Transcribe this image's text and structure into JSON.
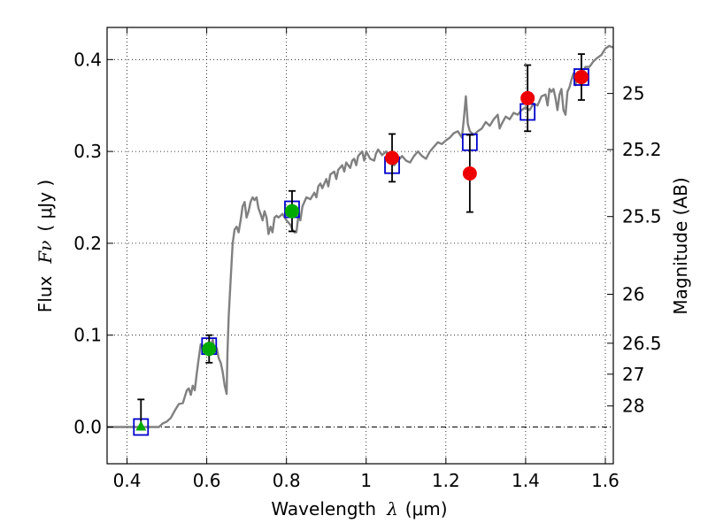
{
  "chart_data": {
    "type": "scatter",
    "x_axis": {
      "label_prefix": "Wavelength",
      "label_symbol": "λ",
      "label_unit": "(μm)",
      "range": [
        0.35,
        1.62
      ],
      "ticks": [
        0.4,
        0.6,
        0.8,
        1.0,
        1.2,
        1.4,
        1.6
      ],
      "tick_labels": [
        "0.4",
        "0.6",
        "0.8",
        "1",
        "1.2",
        "1.4",
        "1.6"
      ]
    },
    "y_axis": {
      "label_prefix": "Flux",
      "label_symbol": "Fν",
      "label_unit": "( μJy )",
      "range": [
        -0.04,
        0.435
      ],
      "ticks": [
        0.0,
        0.1,
        0.2,
        0.3,
        0.4
      ],
      "tick_labels": [
        "0.0",
        "0.1",
        "0.2",
        "0.3",
        "0.4"
      ]
    },
    "y2_axis": {
      "label": "Magnitude (AB)",
      "ticks": [
        {
          "flux": 0.3631,
          "label": "25"
        },
        {
          "flux": 0.302,
          "label": "25.2"
        },
        {
          "flux": 0.2291,
          "label": "25.5"
        },
        {
          "flux": 0.1445,
          "label": "26"
        },
        {
          "flux": 0.0912,
          "label": "26.5"
        },
        {
          "flux": 0.0575,
          "label": "27"
        },
        {
          "flux": 0.0229,
          "label": "28"
        }
      ]
    },
    "grid": true,
    "series": [
      {
        "name": "SED model",
        "kind": "line",
        "color": "#808080",
        "points": [
          [
            0.35,
            0.0
          ],
          [
            0.48,
            0.0
          ],
          [
            0.49,
            0.004
          ],
          [
            0.5,
            0.006
          ],
          [
            0.51,
            0.01
          ],
          [
            0.52,
            0.018
          ],
          [
            0.53,
            0.025
          ],
          [
            0.54,
            0.026
          ],
          [
            0.55,
            0.04
          ],
          [
            0.555,
            0.042
          ],
          [
            0.56,
            0.035
          ],
          [
            0.565,
            0.045
          ],
          [
            0.57,
            0.04
          ],
          [
            0.575,
            0.058
          ],
          [
            0.58,
            0.075
          ],
          [
            0.585,
            0.09
          ],
          [
            0.59,
            0.088
          ],
          [
            0.595,
            0.08
          ],
          [
            0.6,
            0.085
          ],
          [
            0.605,
            0.078
          ],
          [
            0.61,
            0.088
          ],
          [
            0.615,
            0.095
          ],
          [
            0.62,
            0.082
          ],
          [
            0.625,
            0.086
          ],
          [
            0.63,
            0.075
          ],
          [
            0.635,
            0.07
          ],
          [
            0.64,
            0.06
          ],
          [
            0.645,
            0.045
          ],
          [
            0.65,
            0.036
          ],
          [
            0.652,
            0.08
          ],
          [
            0.655,
            0.12
          ],
          [
            0.66,
            0.16
          ],
          [
            0.665,
            0.2
          ],
          [
            0.67,
            0.215
          ],
          [
            0.675,
            0.218
          ],
          [
            0.68,
            0.212
          ],
          [
            0.685,
            0.225
          ],
          [
            0.69,
            0.24
          ],
          [
            0.695,
            0.245
          ],
          [
            0.7,
            0.228
          ],
          [
            0.705,
            0.235
          ],
          [
            0.71,
            0.245
          ],
          [
            0.715,
            0.25
          ],
          [
            0.72,
            0.247
          ],
          [
            0.725,
            0.25
          ],
          [
            0.73,
            0.238
          ],
          [
            0.735,
            0.232
          ],
          [
            0.74,
            0.225
          ],
          [
            0.745,
            0.235
          ],
          [
            0.75,
            0.228
          ],
          [
            0.755,
            0.21
          ],
          [
            0.76,
            0.218
          ],
          [
            0.765,
            0.212
          ],
          [
            0.77,
            0.228
          ],
          [
            0.775,
            0.23
          ],
          [
            0.78,
            0.228
          ],
          [
            0.79,
            0.232
          ],
          [
            0.8,
            0.225
          ],
          [
            0.81,
            0.22
          ],
          [
            0.815,
            0.215
          ],
          [
            0.82,
            0.212
          ],
          [
            0.825,
            0.212
          ],
          [
            0.83,
            0.23
          ],
          [
            0.835,
            0.225
          ],
          [
            0.84,
            0.24
          ],
          [
            0.85,
            0.25
          ],
          [
            0.86,
            0.248
          ],
          [
            0.87,
            0.255
          ],
          [
            0.875,
            0.25
          ],
          [
            0.88,
            0.262
          ],
          [
            0.885,
            0.265
          ],
          [
            0.89,
            0.26
          ],
          [
            0.9,
            0.27
          ],
          [
            0.905,
            0.262
          ],
          [
            0.91,
            0.275
          ],
          [
            0.92,
            0.278
          ],
          [
            0.925,
            0.27
          ],
          [
            0.93,
            0.28
          ],
          [
            0.94,
            0.285
          ],
          [
            0.945,
            0.278
          ],
          [
            0.95,
            0.288
          ],
          [
            0.96,
            0.282
          ],
          [
            0.965,
            0.29
          ],
          [
            0.97,
            0.292
          ],
          [
            0.975,
            0.285
          ],
          [
            0.98,
            0.295
          ],
          [
            0.99,
            0.3
          ],
          [
            0.995,
            0.29
          ],
          [
            1.0,
            0.3
          ],
          [
            1.01,
            0.292
          ],
          [
            1.02,
            0.29
          ],
          [
            1.025,
            0.298
          ],
          [
            1.03,
            0.302
          ],
          [
            1.04,
            0.296
          ],
          [
            1.05,
            0.3
          ],
          [
            1.06,
            0.288
          ],
          [
            1.07,
            0.285
          ],
          [
            1.08,
            0.29
          ],
          [
            1.09,
            0.295
          ],
          [
            1.1,
            0.29
          ],
          [
            1.11,
            0.288
          ],
          [
            1.12,
            0.295
          ],
          [
            1.13,
            0.3
          ],
          [
            1.14,
            0.295
          ],
          [
            1.15,
            0.292
          ],
          [
            1.16,
            0.3
          ],
          [
            1.17,
            0.305
          ],
          [
            1.18,
            0.31
          ],
          [
            1.19,
            0.308
          ],
          [
            1.2,
            0.312
          ],
          [
            1.21,
            0.315
          ],
          [
            1.22,
            0.32
          ],
          [
            1.23,
            0.322
          ],
          [
            1.24,
            0.315
          ],
          [
            1.245,
            0.335
          ],
          [
            1.25,
            0.36
          ],
          [
            1.255,
            0.33
          ],
          [
            1.26,
            0.322
          ],
          [
            1.27,
            0.318
          ],
          [
            1.28,
            0.322
          ],
          [
            1.29,
            0.325
          ],
          [
            1.3,
            0.332
          ],
          [
            1.31,
            0.328
          ],
          [
            1.32,
            0.335
          ],
          [
            1.33,
            0.34
          ],
          [
            1.335,
            0.325
          ],
          [
            1.34,
            0.33
          ],
          [
            1.35,
            0.338
          ],
          [
            1.36,
            0.335
          ],
          [
            1.37,
            0.342
          ],
          [
            1.38,
            0.34
          ],
          [
            1.39,
            0.345
          ],
          [
            1.4,
            0.348
          ],
          [
            1.41,
            0.345
          ],
          [
            1.42,
            0.352
          ],
          [
            1.43,
            0.35
          ],
          [
            1.44,
            0.36
          ],
          [
            1.45,
            0.362
          ],
          [
            1.455,
            0.35
          ],
          [
            1.46,
            0.368
          ],
          [
            1.465,
            0.365
          ],
          [
            1.47,
            0.368
          ],
          [
            1.475,
            0.358
          ],
          [
            1.48,
            0.345
          ],
          [
            1.485,
            0.362
          ],
          [
            1.49,
            0.368
          ],
          [
            1.495,
            0.345
          ],
          [
            1.5,
            0.34
          ],
          [
            1.505,
            0.365
          ],
          [
            1.51,
            0.37
          ],
          [
            1.515,
            0.378
          ],
          [
            1.52,
            0.385
          ],
          [
            1.525,
            0.372
          ],
          [
            1.53,
            0.382
          ],
          [
            1.535,
            0.386
          ],
          [
            1.54,
            0.384
          ],
          [
            1.55,
            0.392
          ],
          [
            1.56,
            0.392
          ],
          [
            1.57,
            0.398
          ],
          [
            1.58,
            0.402
          ],
          [
            1.59,
            0.405
          ],
          [
            1.6,
            0.412
          ],
          [
            1.61,
            0.415
          ],
          [
            1.62,
            0.413
          ]
        ]
      },
      {
        "name": "Model bandpass flux",
        "kind": "open-square",
        "color": "#0000cc",
        "points": [
          [
            0.435,
            0.0
          ],
          [
            0.606,
            0.088
          ],
          [
            0.814,
            0.237
          ],
          [
            1.065,
            0.285
          ],
          [
            1.26,
            0.31
          ],
          [
            1.405,
            0.343
          ],
          [
            1.54,
            0.381
          ]
        ]
      },
      {
        "name": "Observed (green)",
        "kind": "circle",
        "color": "#00aa00",
        "points": [
          {
            "x": 0.606,
            "y": 0.085,
            "err": 0.015
          },
          {
            "x": 0.814,
            "y": 0.235,
            "err": 0.022
          }
        ]
      },
      {
        "name": "Upper limit (green)",
        "kind": "triangle",
        "color": "#00aa00",
        "points": [
          {
            "x": 0.435,
            "y": 0.0,
            "err_hi": 0.03
          }
        ]
      },
      {
        "name": "Observed (red)",
        "kind": "circle",
        "color": "#ee0000",
        "points": [
          {
            "x": 1.065,
            "y": 0.293,
            "err": 0.026
          },
          {
            "x": 1.26,
            "y": 0.276,
            "err": 0.042
          },
          {
            "x": 1.405,
            "y": 0.358,
            "err": 0.036
          },
          {
            "x": 1.54,
            "y": 0.381,
            "err": 0.025
          }
        ]
      }
    ]
  }
}
